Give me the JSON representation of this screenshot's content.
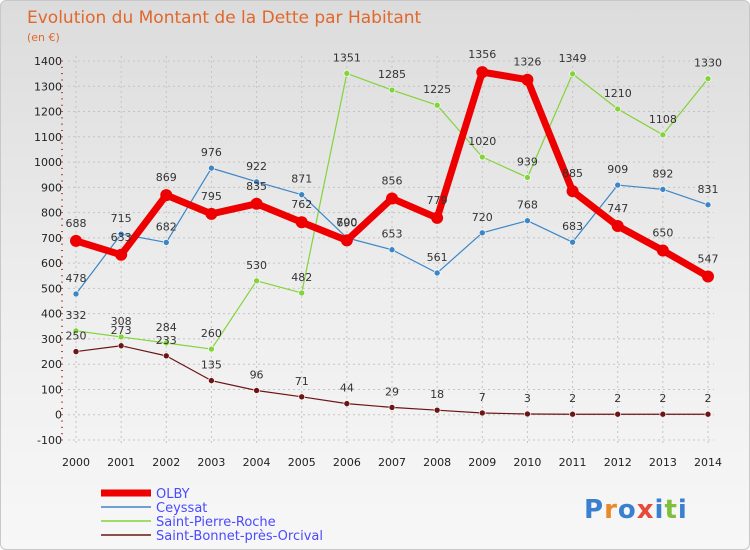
{
  "colors": {
    "title": "#e1672b",
    "background_top": "#dcdcdc",
    "background_bottom": "#f7f7f7",
    "legend_text": "#4a4aff"
  },
  "logo": {
    "letters": [
      "P",
      "r",
      "o",
      "x",
      "i",
      "t",
      "i"
    ],
    "colors": [
      "#3a7fd0",
      "#e98a2a",
      "#3a7fd0",
      "#e84a3a",
      "#3a7fd0",
      "#7fbf3a",
      "#3a7fd0"
    ]
  },
  "chart_data": {
    "type": "line",
    "title": "Evolution du Montant de la Dette par Habitant",
    "subtitle": "(en €)",
    "xlabel": "",
    "ylabel": "",
    "x": [
      "2000",
      "2001",
      "2002",
      "2003",
      "2004",
      "2005",
      "2006",
      "2007",
      "2008",
      "2009",
      "2010",
      "2011",
      "2012",
      "2013",
      "2014"
    ],
    "ylim": [
      -100,
      1400
    ],
    "yticks": [
      -100,
      0,
      100,
      200,
      300,
      400,
      500,
      600,
      700,
      800,
      900,
      1000,
      1100,
      1200,
      1300,
      1400
    ],
    "grid": true,
    "legend": "bottom-left",
    "series": [
      {
        "name": "Saint-Bonnet-près-Orcival",
        "color": "#6b1515",
        "values": [
          250,
          273,
          233,
          135,
          96,
          71,
          44,
          29,
          18,
          7,
          3,
          2,
          2,
          2,
          2
        ]
      },
      {
        "name": "Saint-Pierre-Roche",
        "color": "#82d43a",
        "values": [
          332,
          308,
          284,
          260,
          530,
          482,
          1351,
          1285,
          1225,
          1020,
          939,
          1349,
          1210,
          1108,
          1330
        ]
      },
      {
        "name": "Ceyssat",
        "color": "#3d86c6",
        "values": [
          478,
          715,
          682,
          976,
          922,
          871,
          700,
          653,
          561,
          720,
          768,
          683,
          909,
          892,
          831
        ]
      },
      {
        "name": "OLBY",
        "color": "#ee0000",
        "values": [
          688,
          633,
          869,
          795,
          835,
          762,
          690,
          856,
          779,
          1356,
          1326,
          885,
          747,
          650,
          547
        ]
      }
    ],
    "legend_order": [
      "OLBY",
      "Ceyssat",
      "Saint-Pierre-Roche",
      "Saint-Bonnet-près-Orcival"
    ]
  }
}
